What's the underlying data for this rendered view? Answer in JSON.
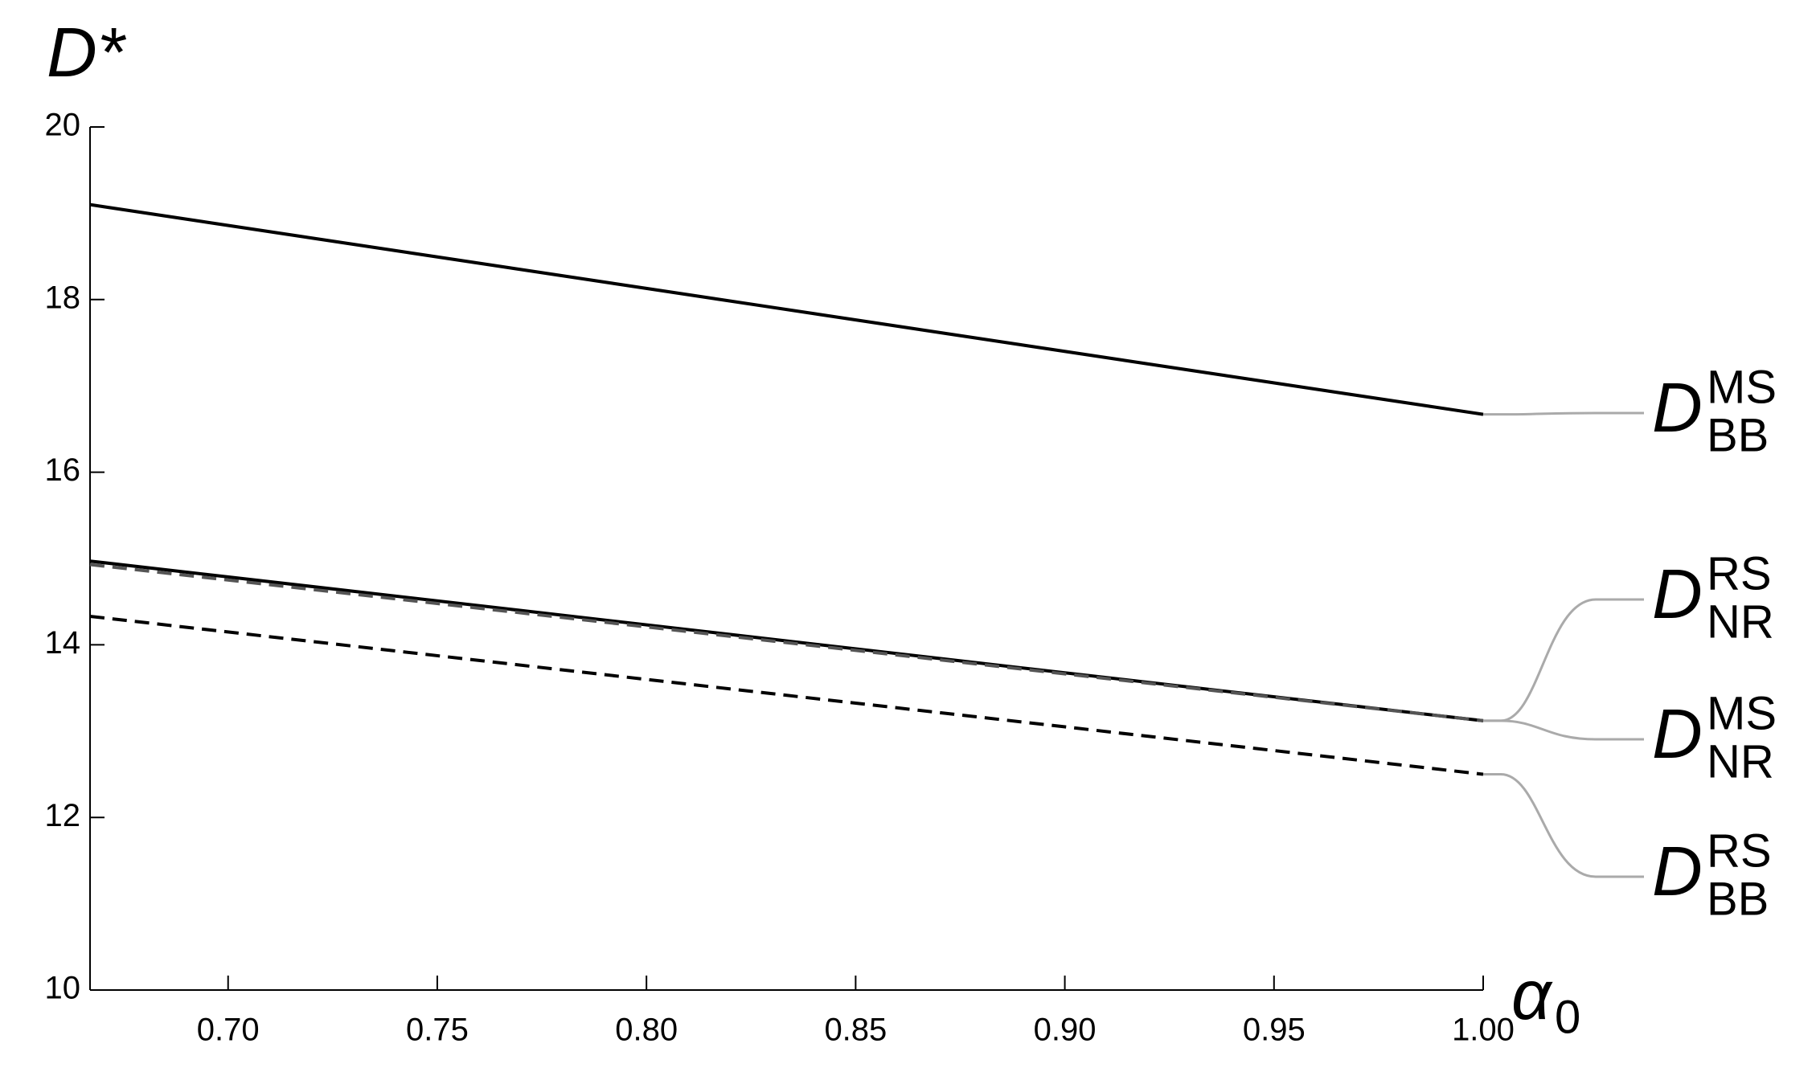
{
  "chart_data": {
    "type": "line",
    "y_label": "D*",
    "x_label": "α",
    "x_label_subscript": "0",
    "x": [
      0.667,
      1.0
    ],
    "xlim": [
      0.667,
      1.0
    ],
    "ylim": [
      10,
      20
    ],
    "xticks": [
      {
        "value": 0.7,
        "label": "0.70"
      },
      {
        "value": 0.75,
        "label": "0.75"
      },
      {
        "value": 0.8,
        "label": "0.80"
      },
      {
        "value": 0.85,
        "label": "0.85"
      },
      {
        "value": 0.9,
        "label": "0.90"
      },
      {
        "value": 0.95,
        "label": "0.95"
      },
      {
        "value": 1.0,
        "label": "1.00"
      }
    ],
    "yticks": [
      10,
      12,
      14,
      16,
      18,
      20
    ],
    "series": [
      {
        "name": "D",
        "superscript": "MS",
        "subscript": "BB",
        "color": "#000000",
        "dashed": false,
        "values": [
          19.1,
          16.67
        ]
      },
      {
        "name": "D",
        "superscript": "RS",
        "subscript": "NR",
        "color": "#000000",
        "dashed": false,
        "values": [
          14.97,
          13.12
        ]
      },
      {
        "name": "D",
        "superscript": "MS",
        "subscript": "NR",
        "color": "#555555",
        "dashed": true,
        "values": [
          14.93,
          13.12
        ]
      },
      {
        "name": "D",
        "superscript": "RS",
        "subscript": "BB",
        "color": "#000000",
        "dashed": true,
        "values": [
          14.33,
          12.5
        ]
      }
    ]
  }
}
